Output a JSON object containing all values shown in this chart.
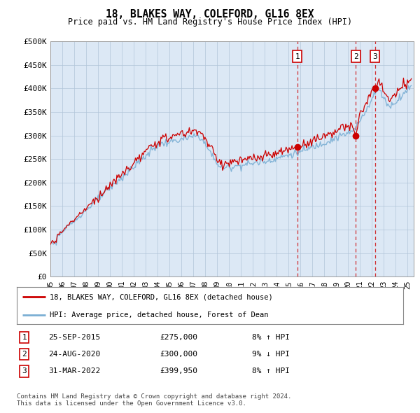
{
  "title": "18, BLAKES WAY, COLEFORD, GL16 8EX",
  "subtitle": "Price paid vs. HM Land Registry's House Price Index (HPI)",
  "ylabel_ticks": [
    "£0",
    "£50K",
    "£100K",
    "£150K",
    "£200K",
    "£250K",
    "£300K",
    "£350K",
    "£400K",
    "£450K",
    "£500K"
  ],
  "ytick_values": [
    0,
    50000,
    100000,
    150000,
    200000,
    250000,
    300000,
    350000,
    400000,
    450000,
    500000
  ],
  "ylim": [
    0,
    500000
  ],
  "xlim_start": 1995.0,
  "xlim_end": 2025.5,
  "xtick_years": [
    1995,
    1996,
    1997,
    1998,
    1999,
    2000,
    2001,
    2002,
    2003,
    2004,
    2005,
    2006,
    2007,
    2008,
    2009,
    2010,
    2011,
    2012,
    2013,
    2014,
    2015,
    2016,
    2017,
    2018,
    2019,
    2020,
    2021,
    2022,
    2023,
    2024,
    2025
  ],
  "xtick_labels": [
    "95",
    "96",
    "97",
    "98",
    "99",
    "00",
    "01",
    "02",
    "03",
    "04",
    "05",
    "06",
    "07",
    "08",
    "09",
    "10",
    "11",
    "12",
    "13",
    "14",
    "15",
    "16",
    "17",
    "18",
    "19",
    "20",
    "21",
    "22",
    "23",
    "24",
    "25"
  ],
  "sale_dates": [
    2015.73,
    2020.65,
    2022.25
  ],
  "sale_prices": [
    275000,
    300000,
    399950
  ],
  "sale_labels": [
    "1",
    "2",
    "3"
  ],
  "legend_entries": [
    "18, BLAKES WAY, COLEFORD, GL16 8EX (detached house)",
    "HPI: Average price, detached house, Forest of Dean"
  ],
  "table_rows": [
    [
      "1",
      "25-SEP-2015",
      "£275,000",
      "8% ↑ HPI"
    ],
    [
      "2",
      "24-AUG-2020",
      "£300,000",
      "9% ↓ HPI"
    ],
    [
      "3",
      "31-MAR-2022",
      "£399,950",
      "8% ↑ HPI"
    ]
  ],
  "footer": "Contains HM Land Registry data © Crown copyright and database right 2024.\nThis data is licensed under the Open Government Licence v3.0.",
  "hpi_color": "#7bafd4",
  "price_color": "#cc0000",
  "background_color": "#ffffff",
  "plot_bg_color": "#dce8f5",
  "grid_color": "#b0c4d8",
  "shade_start": 2015.73,
  "shade_color": "#dce8f5"
}
